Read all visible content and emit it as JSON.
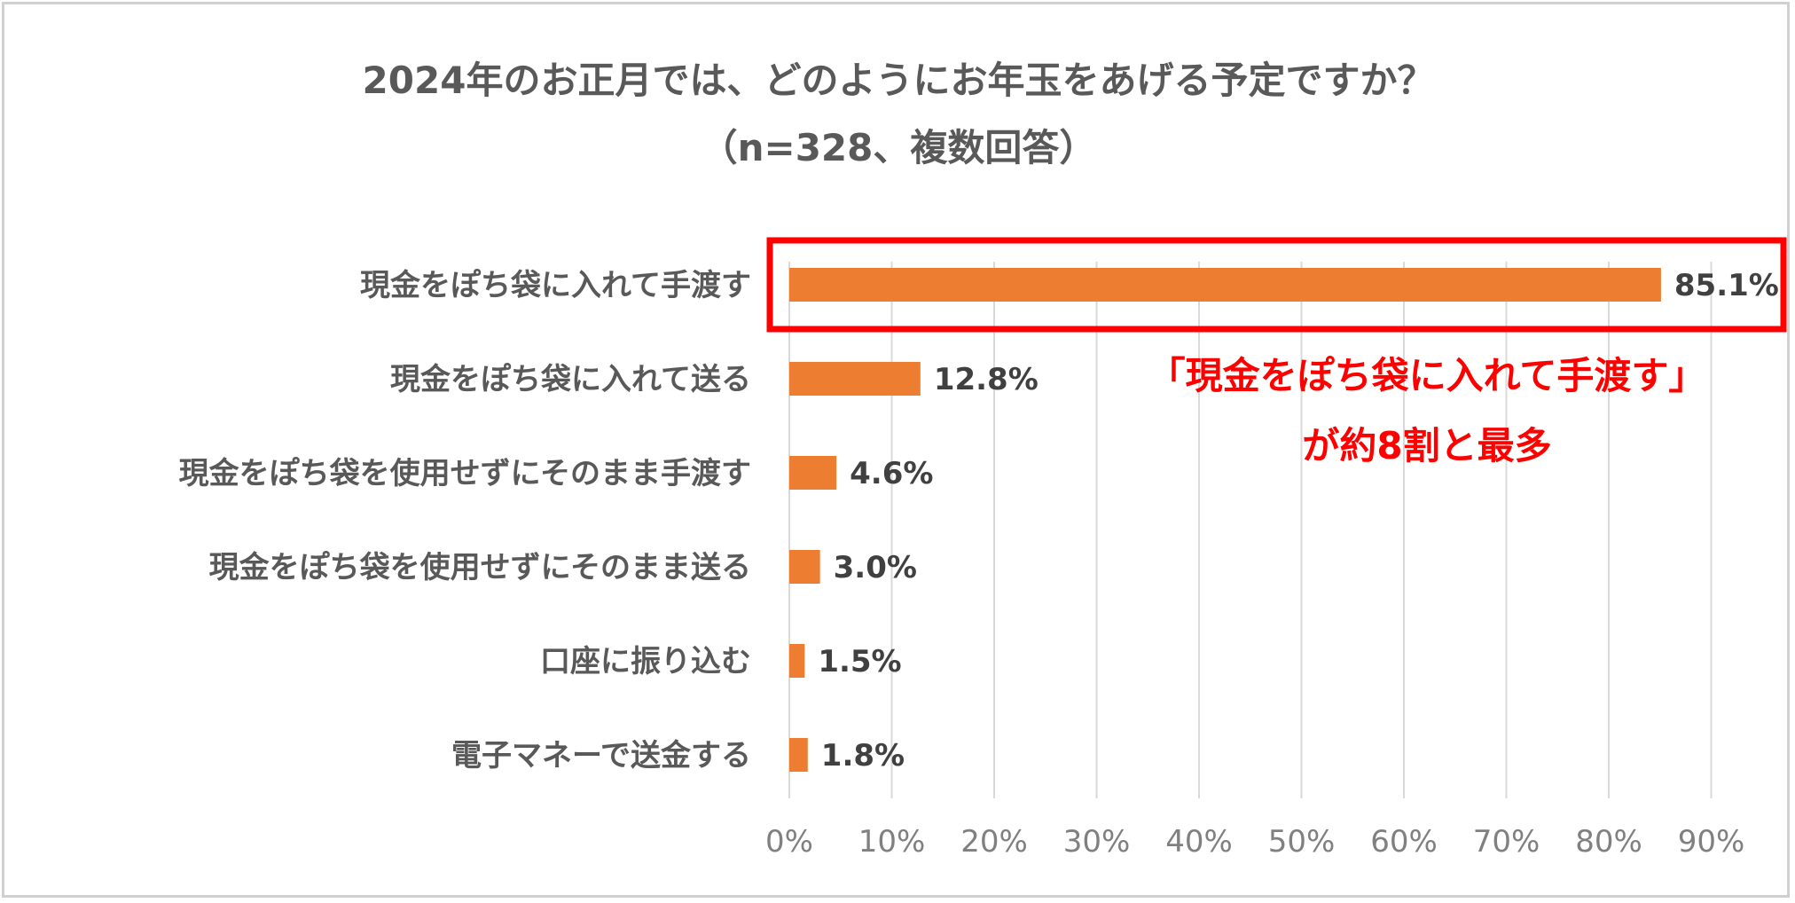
{
  "chart_data": {
    "type": "bar",
    "orientation": "horizontal",
    "title": "2024年のお正月では、どのようにお年玉をあげる予定ですか？",
    "subtitle": "（n=328、複数回答）",
    "categories": [
      "現金をぽち袋に入れて手渡す",
      "現金をぽち袋に入れて送る",
      "現金をぽち袋を使用せずにそのまま手渡す",
      "現金をぽち袋を使用せずにそのまま送る",
      "口座に振り込む",
      "電子マネーで送金する"
    ],
    "values": [
      85.1,
      12.8,
      4.6,
      3.0,
      1.5,
      1.8
    ],
    "value_labels": [
      "85.1%",
      "12.8%",
      "4.6%",
      "3.0%",
      "1.5%",
      "1.8%"
    ],
    "xlim": [
      0,
      90
    ],
    "xticks": [
      0,
      10,
      20,
      30,
      40,
      50,
      60,
      70,
      80,
      90
    ],
    "xtick_labels": [
      "0%",
      "10%",
      "20%",
      "30%",
      "40%",
      "50%",
      "60%",
      "70%",
      "80%",
      "90%"
    ],
    "grid": "vertical",
    "bar_color": "#ed7d31",
    "highlight_color": "#ff0000",
    "highlight_index": 0,
    "annotation": {
      "line1": "「現金をぽち袋に入れて手渡す」",
      "line2": "が約8割と最多"
    }
  }
}
